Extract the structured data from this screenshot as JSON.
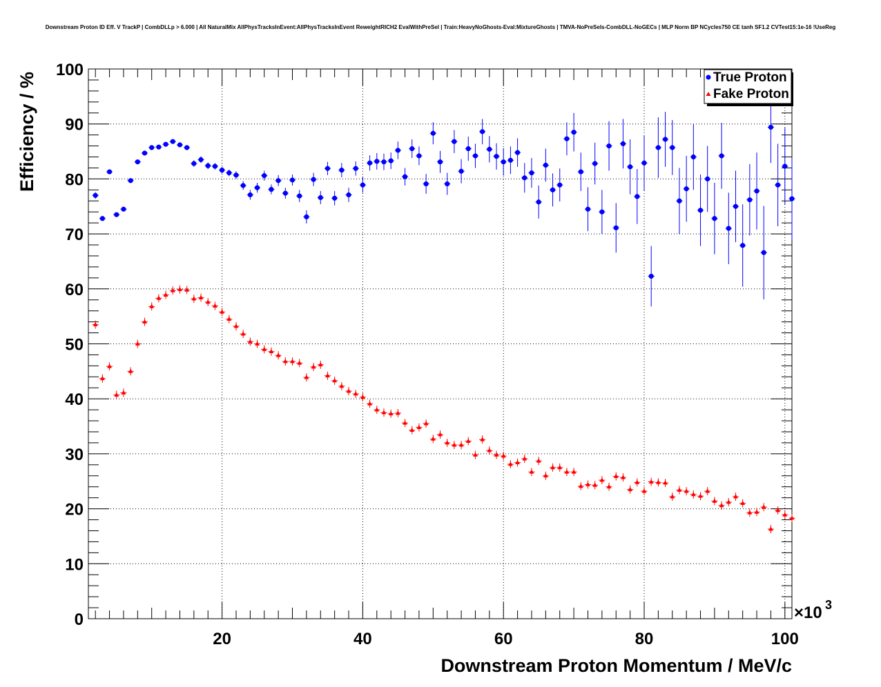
{
  "chart_data": {
    "type": "scatter",
    "title": "Downstream Proton ID Eff. V TrackP | CombDLLp > 6.000 | All NaturalMix AllPhysTracksInEvent:AllPhysTracksInEvent ReweightRICH2 EvalWithPreSel | Train:HeavyNoGhosts-Eval:MixtureGhosts | TMVA-NoPreSels-CombDLL-NoGECs | MLP Norm BP NCycles750 CE tanh SF1.2 CVTest15:1e-16 !UseReg",
    "xlabel": "Downstream Proton Momentum / MeV/c",
    "ylabel": "Efficiency / %",
    "x_multiplier_label": "×10",
    "x_multiplier_exp": "3",
    "xlim": [
      1,
      101
    ],
    "ylim": [
      0,
      100
    ],
    "x_ticks": [
      20,
      40,
      60,
      80,
      100
    ],
    "y_ticks": [
      0,
      10,
      20,
      30,
      40,
      50,
      60,
      70,
      80,
      90,
      100
    ],
    "grid": true,
    "legend_position": "top-right",
    "series": [
      {
        "name": "True Proton",
        "color": "#0000ff",
        "marker": "circle",
        "x": [
          2,
          3,
          4,
          5,
          6,
          7,
          8,
          9,
          10,
          11,
          12,
          13,
          14,
          15,
          16,
          17,
          18,
          19,
          20,
          21,
          22,
          23,
          24,
          25,
          26,
          27,
          28,
          29,
          30,
          31,
          32,
          33,
          34,
          35,
          36,
          37,
          38,
          39,
          40,
          41,
          42,
          43,
          44,
          45,
          46,
          47,
          48,
          49,
          50,
          51,
          52,
          53,
          54,
          55,
          56,
          57,
          58,
          59,
          60,
          61,
          62,
          63,
          64,
          65,
          66,
          67,
          68,
          69,
          70,
          71,
          72,
          73,
          74,
          75,
          76,
          77,
          78,
          79,
          80,
          81,
          82,
          83,
          84,
          85,
          86,
          87,
          88,
          89,
          90,
          91,
          92,
          93,
          94,
          95,
          96,
          97,
          98,
          99,
          100,
          101
        ],
        "y": [
          77.0,
          72.8,
          81.3,
          73.5,
          74.5,
          79.7,
          83.1,
          84.7,
          85.7,
          85.8,
          86.3,
          86.8,
          86.2,
          85.7,
          82.8,
          83.5,
          82.4,
          82.3,
          81.6,
          81.1,
          80.7,
          78.8,
          77.1,
          78.4,
          80.6,
          78.1,
          79.7,
          77.4,
          79.8,
          76.9,
          73.1,
          79.9,
          76.6,
          81.9,
          76.5,
          81.6,
          77.1,
          81.9,
          78.9,
          82.9,
          83.2,
          83.1,
          83.3,
          85.2,
          80.4,
          85.5,
          84.2,
          79.1,
          88.3,
          83.1,
          79.1,
          86.8,
          81.4,
          85.5,
          84.2,
          88.6,
          85.4,
          84.1,
          83.1,
          83.4,
          84.8,
          80.2,
          81.1,
          75.8,
          82.5,
          78.0,
          78.9,
          87.3,
          88.5,
          81.3,
          74.5,
          82.8,
          74.0,
          86.0,
          71.1,
          86.4,
          82.2,
          76.8,
          82.9,
          62.3,
          85.7,
          87.2,
          85.7,
          76.0,
          78.2,
          84.0,
          74.3,
          80.0,
          72.8,
          84.2,
          71.0,
          75.0,
          67.9,
          76.2,
          77.8,
          66.6,
          89.4,
          78.9,
          82.3,
          76.4
        ],
        "y_err": [
          0.6,
          0.4,
          0.4,
          0.4,
          0.4,
          0.4,
          0.4,
          0.4,
          0.4,
          0.4,
          0.4,
          0.4,
          0.4,
          0.4,
          0.6,
          0.6,
          0.6,
          0.6,
          0.6,
          0.6,
          0.7,
          0.8,
          0.9,
          0.9,
          0.9,
          0.9,
          1.0,
          1.0,
          1.0,
          1.1,
          1.2,
          1.2,
          1.2,
          1.2,
          1.3,
          1.3,
          1.3,
          1.3,
          1.4,
          1.4,
          1.5,
          1.5,
          1.5,
          1.6,
          1.6,
          1.7,
          1.7,
          1.8,
          2.0,
          2.0,
          2.0,
          2.1,
          2.2,
          2.2,
          2.2,
          2.3,
          2.4,
          2.4,
          2.5,
          2.5,
          2.6,
          2.7,
          2.7,
          3.0,
          3.0,
          3.0,
          3.0,
          3.0,
          3.5,
          3.5,
          4.0,
          3.8,
          4.0,
          4.5,
          4.5,
          4.5,
          5.0,
          5.0,
          5.0,
          5.5,
          5.5,
          5.0,
          5.0,
          6.0,
          6.0,
          6.0,
          6.5,
          6.0,
          6.5,
          6.0,
          6.5,
          6.5,
          7.5,
          6.5,
          7.0,
          8.5,
          6.5,
          7.5,
          7.0,
          7.5
        ]
      },
      {
        "name": "Fake Proton",
        "color": "#ff0000",
        "marker": "triangle",
        "x": [
          2,
          3,
          4,
          5,
          6,
          7,
          8,
          9,
          10,
          11,
          12,
          13,
          14,
          15,
          16,
          17,
          18,
          19,
          20,
          21,
          22,
          23,
          24,
          25,
          26,
          27,
          28,
          29,
          30,
          31,
          32,
          33,
          34,
          35,
          36,
          37,
          38,
          39,
          40,
          41,
          42,
          43,
          44,
          45,
          46,
          47,
          48,
          49,
          50,
          51,
          52,
          53,
          54,
          55,
          56,
          57,
          58,
          59,
          60,
          61,
          62,
          63,
          64,
          65,
          66,
          67,
          68,
          69,
          70,
          71,
          72,
          73,
          74,
          75,
          76,
          77,
          78,
          79,
          80,
          81,
          82,
          83,
          84,
          85,
          86,
          87,
          88,
          89,
          90,
          91,
          92,
          93,
          94,
          95,
          96,
          97,
          98,
          99,
          100,
          101
        ],
        "y": [
          53.5,
          43.7,
          45.9,
          40.7,
          41.1,
          45.0,
          50.0,
          54.0,
          56.8,
          58.3,
          58.9,
          59.7,
          59.9,
          59.8,
          58.2,
          58.4,
          57.6,
          56.9,
          55.8,
          54.5,
          53.2,
          51.8,
          50.4,
          50.0,
          49.0,
          48.6,
          47.9,
          46.8,
          46.8,
          46.5,
          43.9,
          45.8,
          46.2,
          44.2,
          43.3,
          42.3,
          41.4,
          40.9,
          40.3,
          39.1,
          38.0,
          37.5,
          37.3,
          37.4,
          35.6,
          34.3,
          34.8,
          35.5,
          32.7,
          33.5,
          32.0,
          31.6,
          31.6,
          32.3,
          29.8,
          32.6,
          30.6,
          29.8,
          29.6,
          28.1,
          28.4,
          29.1,
          26.7,
          28.7,
          26.0,
          27.5,
          27.5,
          26.7,
          26.7,
          24.1,
          24.4,
          24.3,
          25.2,
          24.0,
          25.9,
          25.7,
          23.5,
          24.8,
          23.2,
          24.9,
          24.8,
          24.7,
          22.2,
          23.4,
          23.2,
          22.6,
          22.3,
          23.2,
          21.4,
          20.6,
          21.2,
          22.2,
          21.0,
          19.3,
          19.4,
          20.3,
          16.3,
          19.7,
          18.9,
          18.3
        ]
      }
    ]
  }
}
